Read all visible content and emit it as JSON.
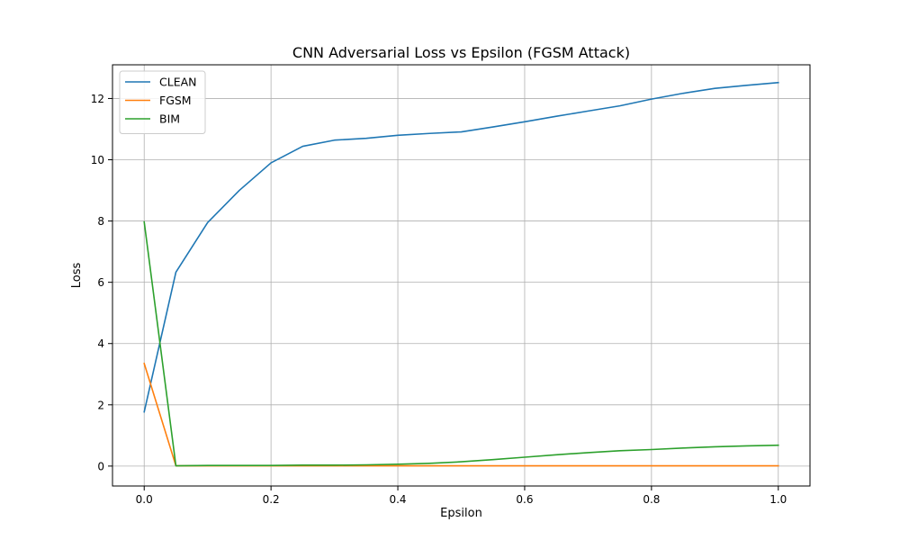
{
  "chart_data": {
    "type": "line",
    "title": "CNN Adversarial Loss vs Epsilon (FGSM Attack)",
    "xlabel": "Epsilon",
    "ylabel": "Loss",
    "xlim": [
      -0.05,
      1.05
    ],
    "ylim": [
      -0.65,
      13.1
    ],
    "xticks": [
      0.0,
      0.2,
      0.4,
      0.6,
      0.8,
      1.0
    ],
    "xtick_labels": [
      "0.0",
      "0.2",
      "0.4",
      "0.6",
      "0.8",
      "1.0"
    ],
    "yticks": [
      0,
      2,
      4,
      6,
      8,
      10,
      12
    ],
    "ytick_labels": [
      "0",
      "2",
      "4",
      "6",
      "8",
      "10",
      "12"
    ],
    "grid": true,
    "legend_position": "top-left",
    "x": [
      0.0,
      0.05,
      0.1,
      0.15,
      0.2,
      0.25,
      0.3,
      0.35,
      0.4,
      0.45,
      0.5,
      0.55,
      0.6,
      0.65,
      0.7,
      0.75,
      0.8,
      0.85,
      0.9,
      0.95,
      1.0
    ],
    "series": [
      {
        "name": "CLEAN",
        "color": "#1f77b4",
        "values": [
          1.77,
          6.33,
          7.95,
          9.0,
          9.9,
          10.44,
          10.64,
          10.7,
          10.8,
          10.86,
          10.91,
          11.07,
          11.24,
          11.42,
          11.59,
          11.76,
          11.98,
          12.17,
          12.33,
          12.43,
          12.52
        ]
      },
      {
        "name": "FGSM",
        "color": "#ff7f0e",
        "values": [
          3.35,
          0.01,
          0.01,
          0.01,
          0.01,
          0.01,
          0.01,
          0.01,
          0.01,
          0.01,
          0.01,
          0.01,
          0.01,
          0.01,
          0.01,
          0.01,
          0.01,
          0.01,
          0.01,
          0.01,
          0.01
        ]
      },
      {
        "name": "BIM",
        "color": "#2ca02c",
        "values": [
          7.97,
          0.01,
          0.02,
          0.02,
          0.02,
          0.03,
          0.03,
          0.04,
          0.06,
          0.09,
          0.14,
          0.21,
          0.29,
          0.37,
          0.44,
          0.5,
          0.54,
          0.59,
          0.63,
          0.66,
          0.68
        ]
      }
    ]
  }
}
